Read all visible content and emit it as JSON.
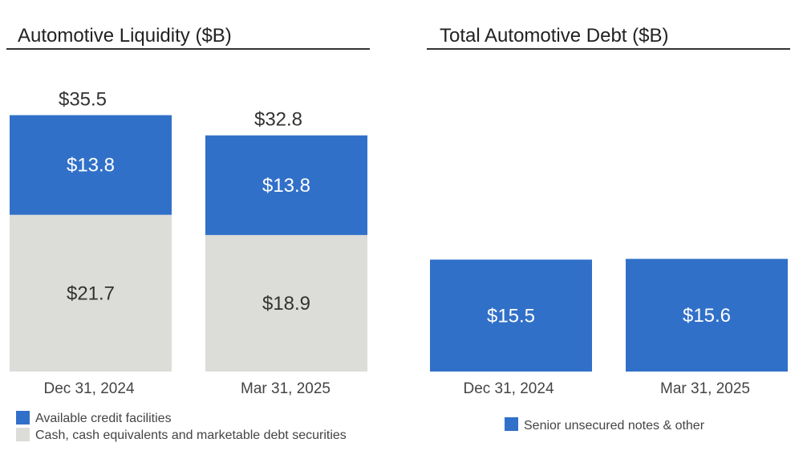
{
  "colors": {
    "blue": "#3170C8",
    "gray": "#DCDCD8",
    "rule": "#333333"
  },
  "chart_data": [
    {
      "type": "bar",
      "stacked": true,
      "title": "Automotive Liquidity ($B)",
      "categories": [
        "Dec 31, 2024",
        "Mar 31, 2025"
      ],
      "series": [
        {
          "name": "Cash, cash equivalents and marketable debt securities",
          "values": [
            21.7,
            18.9
          ],
          "labels": [
            "$21.7",
            "$18.9"
          ],
          "color": "#DCDCD8"
        },
        {
          "name": "Available credit facilities",
          "values": [
            13.8,
            13.8
          ],
          "labels": [
            "$13.8",
            "$13.8"
          ],
          "color": "#3170C8"
        }
      ],
      "totals": [
        35.5,
        32.8
      ],
      "total_labels": [
        "$35.5",
        "$32.8"
      ],
      "legend": [
        "Available credit facilities",
        "Cash, cash equivalents and marketable debt securities"
      ],
      "ylim": [
        0,
        40
      ]
    },
    {
      "type": "bar",
      "title": "Total Automotive Debt ($B)",
      "categories": [
        "Dec 31, 2024",
        "Mar 31, 2025"
      ],
      "series": [
        {
          "name": "Senior unsecured notes & other",
          "values": [
            15.5,
            15.6
          ],
          "labels": [
            "$15.5",
            "$15.6"
          ],
          "color": "#3170C8"
        }
      ],
      "legend": [
        "Senior unsecured notes & other"
      ],
      "ylim": [
        0,
        40
      ]
    }
  ]
}
